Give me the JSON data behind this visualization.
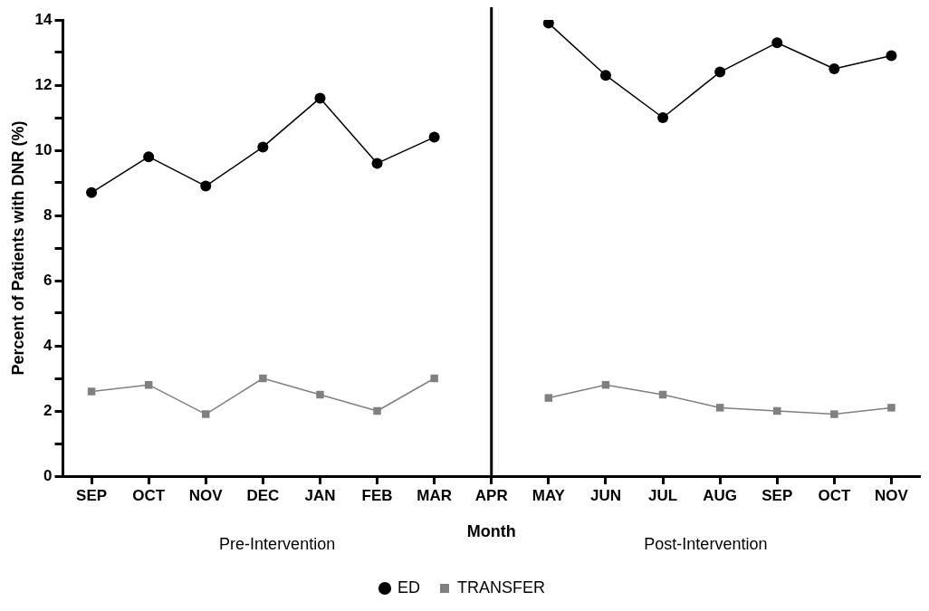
{
  "chart_data": {
    "type": "line",
    "xlabel": "Month",
    "ylabel": "Percent of Patients with DNR (%)",
    "categories": [
      "SEP",
      "OCT",
      "NOV",
      "DEC",
      "JAN",
      "FEB",
      "MAR",
      "APR",
      "MAY",
      "JUN",
      "JUL",
      "AUG",
      "SEP",
      "OCT",
      "NOV"
    ],
    "series": [
      {
        "name": "ED",
        "color": "#000000",
        "marker": "circle",
        "values": [
          8.7,
          9.8,
          8.9,
          10.1,
          11.6,
          9.6,
          10.4,
          null,
          13.9,
          12.3,
          11.0,
          12.4,
          13.3,
          12.5,
          12.9
        ]
      },
      {
        "name": "TRANSFER",
        "color": "#808080",
        "marker": "square",
        "values": [
          2.6,
          2.8,
          1.9,
          3.0,
          2.5,
          2.0,
          3.0,
          null,
          2.4,
          2.8,
          2.5,
          2.1,
          2.0,
          1.9,
          2.1
        ]
      }
    ],
    "ylim": [
      0,
      14
    ],
    "yticks": [
      0,
      {
        "value": 1,
        "label": null
      },
      2,
      {
        "value": 3,
        "label": null
      },
      4,
      {
        "value": 5,
        "label": null
      },
      6,
      {
        "value": 7,
        "label": null
      },
      8,
      {
        "value": 9,
        "label": null
      },
      10,
      {
        "value": 11,
        "label": null
      },
      12,
      {
        "value": 13,
        "label": null
      },
      14
    ],
    "ref_lines": [
      {
        "axis": "x",
        "value": "APR",
        "color": "#000000"
      }
    ],
    "annotations": [
      "Pre-Intervention",
      "Post-Intervention"
    ],
    "grid": false,
    "legend": "bottom",
    "line_style": "solid"
  }
}
